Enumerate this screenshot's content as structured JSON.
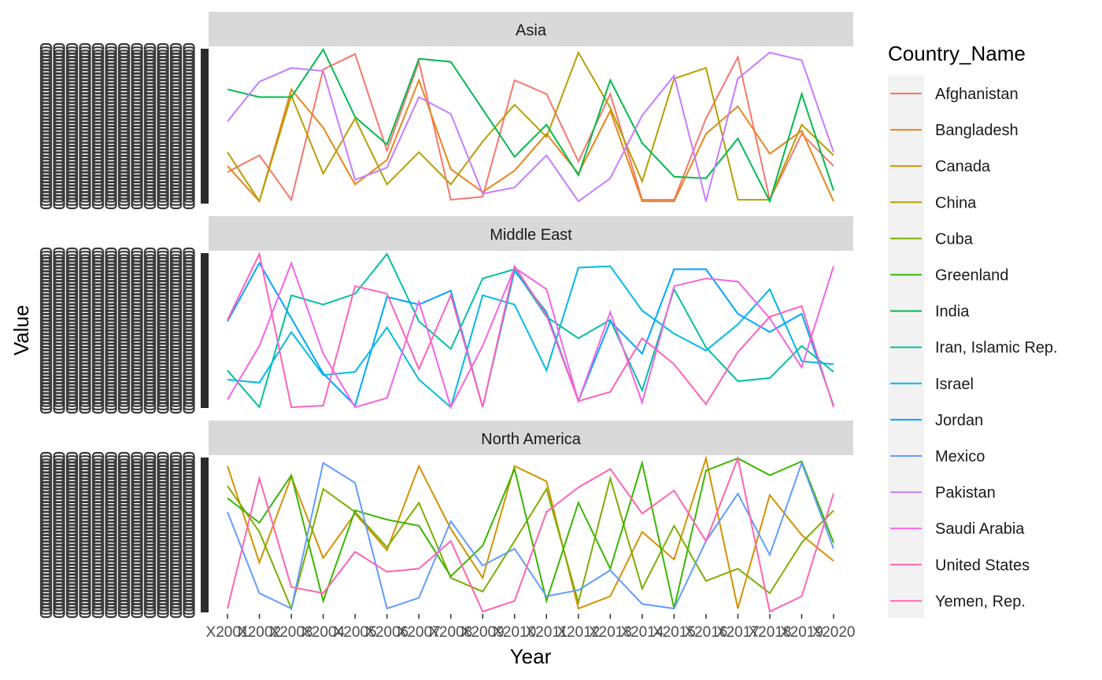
{
  "chart_data": {
    "type": "line",
    "facet_by": "Region",
    "facets": [
      "Asia",
      "Middle East",
      "North America"
    ],
    "xlabel": "Year",
    "ylabel": "Value",
    "legend": {
      "title": "Country_Name",
      "placement": "right"
    },
    "x": [
      "X2001",
      "X2002",
      "X2003",
      "X2004",
      "X2005",
      "X2006",
      "X2007",
      "X2008",
      "X2009",
      "X2010",
      "X2011",
      "X2012",
      "X2013",
      "X2014",
      "X2015",
      "X2016",
      "X2017",
      "X2018",
      "X2019",
      "X2020"
    ],
    "ylim": [
      0,
      1
    ],
    "series": [
      {
        "name": "Afghanistan",
        "facet": "Asia",
        "color": "#F8766D",
        "values": [
          0.2,
          0.31,
          0.02,
          0.87,
          0.97,
          0.34,
          0.92,
          0.02,
          0.04,
          0.8,
          0.71,
          0.27,
          0.71,
          0.02,
          0.02,
          0.55,
          0.95,
          0.02,
          0.45,
          0.24
        ]
      },
      {
        "name": "Bangladesh",
        "facet": "Asia",
        "color": "#E7861B",
        "values": [
          0.24,
          0.01,
          0.74,
          0.49,
          0.12,
          0.28,
          0.8,
          0.22,
          0.07,
          0.21,
          0.45,
          0.19,
          0.6,
          0.01,
          0.01,
          0.45,
          0.63,
          0.32,
          0.47,
          0.01
        ]
      },
      {
        "name": "Canada",
        "facet": "North America",
        "color": "#D39200",
        "values": [
          0.95,
          0.32,
          0.88,
          0.35,
          0.64,
          0.4,
          0.95,
          0.54,
          0.22,
          0.95,
          0.85,
          0.02,
          0.1,
          0.52,
          0.34,
          1.0,
          0.02,
          0.76,
          0.5,
          0.33
        ]
      },
      {
        "name": "China",
        "facet": "Asia",
        "color": "#B79F00",
        "values": [
          0.33,
          0.01,
          0.7,
          0.19,
          0.55,
          0.12,
          0.33,
          0.12,
          0.4,
          0.64,
          0.43,
          0.98,
          0.62,
          0.14,
          0.81,
          0.88,
          0.02,
          0.02,
          0.51,
          0.31
        ]
      },
      {
        "name": "Cuba",
        "facet": "North America",
        "color": "#7CAE00",
        "values": [
          0.82,
          0.52,
          0.02,
          0.8,
          0.65,
          0.42,
          0.71,
          0.22,
          0.13,
          0.46,
          0.8,
          0.06,
          0.87,
          0.15,
          0.56,
          0.2,
          0.28,
          0.12,
          0.45,
          0.66
        ]
      },
      {
        "name": "Greenland",
        "facet": "North America",
        "color": "#39B600",
        "values": [
          0.74,
          0.58,
          0.89,
          0.07,
          0.66,
          0.6,
          0.56,
          0.23,
          0.43,
          0.93,
          0.07,
          0.71,
          0.28,
          0.97,
          0.02,
          0.92,
          1.0,
          0.89,
          0.98,
          0.45
        ]
      },
      {
        "name": "India",
        "facet": "Asia",
        "color": "#00BB4E",
        "values": [
          0.74,
          0.69,
          0.69,
          1.0,
          0.56,
          0.38,
          0.94,
          0.92,
          0.61,
          0.3,
          0.51,
          0.18,
          0.8,
          0.39,
          0.17,
          0.16,
          0.42,
          0.01,
          0.71,
          0.08
        ]
      },
      {
        "name": "Iran, Islamic Rep.",
        "facet": "Middle East",
        "color": "#00C1A3",
        "values": [
          0.24,
          0.0,
          0.73,
          0.67,
          0.74,
          1.0,
          0.56,
          0.38,
          0.84,
          0.9,
          0.59,
          0.45,
          0.57,
          0.11,
          0.77,
          0.39,
          0.17,
          0.19,
          0.4,
          0.23
        ]
      },
      {
        "name": "Israel",
        "facet": "Middle East",
        "color": "#00BAE0",
        "values": [
          0.18,
          0.16,
          0.49,
          0.21,
          0.23,
          0.52,
          0.18,
          0.0,
          0.73,
          0.67,
          0.24,
          0.91,
          0.92,
          0.63,
          0.48,
          0.37,
          0.54,
          0.77,
          0.3,
          0.28
        ]
      },
      {
        "name": "Jordan",
        "facet": "Middle East",
        "color": "#00A5FF",
        "values": [
          0.56,
          0.94,
          0.58,
          0.22,
          0.01,
          0.72,
          0.67,
          0.76,
          0.0,
          0.89,
          0.62,
          0.04,
          0.56,
          0.35,
          0.9,
          0.9,
          0.61,
          0.49,
          0.61,
          0.01
        ]
      },
      {
        "name": "Mexico",
        "facet": "North America",
        "color": "#619CFF",
        "values": [
          0.65,
          0.12,
          0.02,
          0.97,
          0.84,
          0.02,
          0.09,
          0.59,
          0.3,
          0.41,
          0.1,
          0.14,
          0.27,
          0.05,
          0.02,
          0.46,
          0.77,
          0.37,
          0.97,
          0.41
        ]
      },
      {
        "name": "Pakistan",
        "facet": "Asia",
        "color": "#C77CFF",
        "values": [
          0.53,
          0.79,
          0.88,
          0.86,
          0.15,
          0.23,
          0.69,
          0.58,
          0.06,
          0.1,
          0.31,
          0.01,
          0.16,
          0.57,
          0.83,
          0.01,
          0.81,
          0.98,
          0.93,
          0.33
        ]
      },
      {
        "name": "Saudi Arabia",
        "facet": "Middle East",
        "color": "#F564E3",
        "values": [
          0.05,
          0.4,
          0.94,
          0.35,
          0.0,
          0.06,
          0.69,
          0.0,
          0.4,
          0.91,
          0.77,
          0.04,
          0.62,
          0.03,
          0.79,
          0.84,
          0.82,
          0.58,
          0.26,
          0.92
        ]
      },
      {
        "name": "United States",
        "facet": "North America",
        "color": "#FF64B0",
        "values": [
          0.02,
          0.87,
          0.16,
          0.12,
          0.39,
          0.26,
          0.28,
          0.46,
          0.0,
          0.07,
          0.65,
          0.81,
          0.93,
          0.64,
          0.79,
          0.46,
          1.0,
          0.0,
          0.1,
          0.77
        ]
      },
      {
        "name": "Yemen, Rep.",
        "facet": "Middle East",
        "color": "#FF62BC",
        "values": [
          0.57,
          1.0,
          0.0,
          0.01,
          0.79,
          0.74,
          0.25,
          0.73,
          0.0,
          0.92,
          0.6,
          0.04,
          0.1,
          0.45,
          0.28,
          0.02,
          0.36,
          0.59,
          0.66,
          0.0
        ]
      }
    ]
  }
}
